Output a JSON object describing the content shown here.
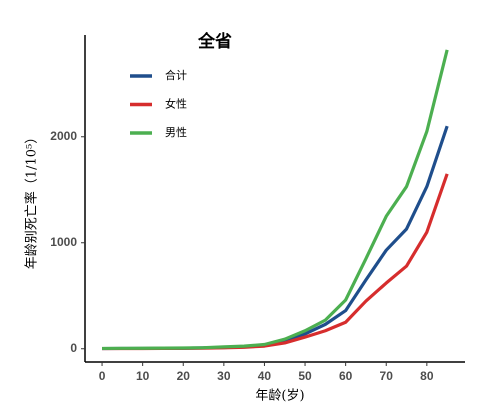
{
  "chart_data": {
    "type": "line",
    "title": "全省",
    "x_label": "年龄(岁)",
    "y_label": "年龄别死亡率（1/10⁵）",
    "x": [
      0,
      5,
      10,
      15,
      20,
      25,
      30,
      35,
      40,
      45,
      50,
      55,
      60,
      65,
      70,
      75,
      80,
      85
    ],
    "series": [
      {
        "name": "合计",
        "color": "#1f4e8c",
        "values": [
          2,
          3,
          3,
          4,
          5,
          8,
          12,
          18,
          30,
          70,
          140,
          230,
          360,
          650,
          930,
          1130,
          1530,
          2100
        ]
      },
      {
        "name": "女性",
        "color": "#d62d2d",
        "values": [
          2,
          2,
          2,
          3,
          4,
          6,
          9,
          14,
          25,
          55,
          110,
          170,
          250,
          450,
          620,
          780,
          1100,
          1650
        ]
      },
      {
        "name": "男性",
        "color": "#4caf50",
        "values": [
          3,
          4,
          5,
          6,
          7,
          10,
          18,
          25,
          40,
          90,
          170,
          270,
          460,
          850,
          1250,
          1530,
          2050,
          2820
        ]
      }
    ],
    "xlim": [
      -4.2,
      89.4
    ],
    "xticks": [
      0,
      10,
      20,
      30,
      40,
      50,
      60,
      70,
      80
    ],
    "ylim": [
      -125,
      2960
    ],
    "yticks": [
      0,
      1000,
      2000
    ],
    "grid": false,
    "legend": "top-left"
  }
}
